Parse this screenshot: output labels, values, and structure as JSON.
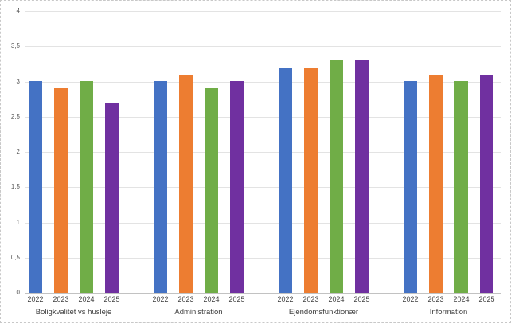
{
  "chart_data": {
    "type": "bar",
    "title": "",
    "xlabel": "",
    "ylabel": "",
    "categories": [
      "Boligkvalitet vs husleje",
      "Administration",
      "Ejendomsfunktionær",
      "Information"
    ],
    "series": [
      {
        "name": "2022",
        "color": "#4472C4",
        "values": [
          3.0,
          3.0,
          3.2,
          3.0
        ]
      },
      {
        "name": "2023",
        "color": "#ED7D31",
        "values": [
          2.9,
          3.1,
          3.2,
          3.1
        ]
      },
      {
        "name": "2024",
        "color": "#70AD47",
        "values": [
          3.0,
          2.9,
          3.3,
          3.0
        ]
      },
      {
        "name": "2025",
        "color": "#7030A0",
        "values": [
          2.7,
          3.0,
          3.3,
          3.1
        ]
      }
    ],
    "ylim": [
      0,
      4
    ],
    "ytick_step": 0.5,
    "ytick_labels": [
      "0",
      "0,5",
      "1",
      "1,5",
      "2",
      "2,5",
      "3",
      "3,5",
      "4"
    ],
    "grid": true,
    "legend_position": "none",
    "series_labels_shown_below_each_bar": true
  },
  "colors": {
    "background": "#ffffff",
    "frame_border": "#c8c8c8",
    "gridline": "#e3e3e3",
    "axis_baseline": "#c2c2c2",
    "tick_text": "#595959",
    "label_text": "#404040"
  }
}
